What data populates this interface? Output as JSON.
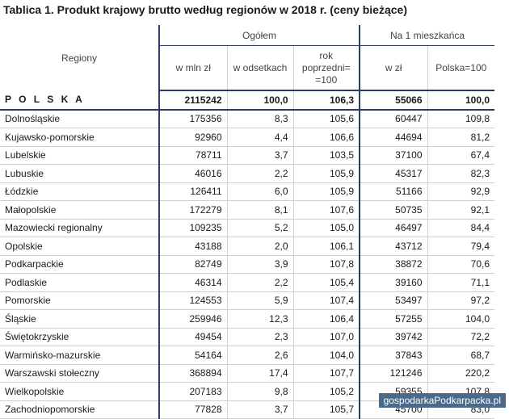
{
  "title": "Tablica 1. Produkt krajowy brutto według regionów w 2018 r. (ceny bieżące)",
  "headers": {
    "regions": "Regiony",
    "group_total": "Ogółem",
    "group_per_capita": "Na 1 mieszkańca",
    "col_mln": "w mln zł",
    "col_pct": "w odsetkach",
    "col_prev_line1": "rok",
    "col_prev_line2": "poprzedni=",
    "col_prev_line3": "=100",
    "col_pln": "w zł",
    "col_pl100": "Polska=100"
  },
  "rows": [
    {
      "name": "P O L S K A",
      "mln": "2115242",
      "pct": "100,0",
      "prev": "106,3",
      "pln": "55066",
      "pl100": "100,0"
    },
    {
      "name": "Dolnośląskie",
      "mln": "175356",
      "pct": "8,3",
      "prev": "105,6",
      "pln": "60447",
      "pl100": "109,8"
    },
    {
      "name": "Kujawsko-pomorskie",
      "mln": "92960",
      "pct": "4,4",
      "prev": "106,6",
      "pln": "44694",
      "pl100": "81,2"
    },
    {
      "name": "Lubelskie",
      "mln": "78711",
      "pct": "3,7",
      "prev": "103,5",
      "pln": "37100",
      "pl100": "67,4"
    },
    {
      "name": "Lubuskie",
      "mln": "46016",
      "pct": "2,2",
      "prev": "105,9",
      "pln": "45317",
      "pl100": "82,3"
    },
    {
      "name": "Łódzkie",
      "mln": "126411",
      "pct": "6,0",
      "prev": "105,9",
      "pln": "51166",
      "pl100": "92,9"
    },
    {
      "name": "Małopolskie",
      "mln": "172279",
      "pct": "8,1",
      "prev": "107,6",
      "pln": "50735",
      "pl100": "92,1"
    },
    {
      "name": "Mazowiecki regionalny",
      "mln": "109235",
      "pct": "5,2",
      "prev": "105,0",
      "pln": "46497",
      "pl100": "84,4"
    },
    {
      "name": "Opolskie",
      "mln": "43188",
      "pct": "2,0",
      "prev": "106,1",
      "pln": "43712",
      "pl100": "79,4"
    },
    {
      "name": "Podkarpackie",
      "mln": "82749",
      "pct": "3,9",
      "prev": "107,8",
      "pln": "38872",
      "pl100": "70,6"
    },
    {
      "name": "Podlaskie",
      "mln": "46314",
      "pct": "2,2",
      "prev": "105,4",
      "pln": "39160",
      "pl100": "71,1"
    },
    {
      "name": "Pomorskie",
      "mln": "124553",
      "pct": "5,9",
      "prev": "107,4",
      "pln": "53497",
      "pl100": "97,2"
    },
    {
      "name": "Śląskie",
      "mln": "259946",
      "pct": "12,3",
      "prev": "106,4",
      "pln": "57255",
      "pl100": "104,0"
    },
    {
      "name": "Świętokrzyskie",
      "mln": "49454",
      "pct": "2,3",
      "prev": "107,0",
      "pln": "39742",
      "pl100": "72,2"
    },
    {
      "name": "Warmińsko-mazurskie",
      "mln": "54164",
      "pct": "2,6",
      "prev": "104,0",
      "pln": "37843",
      "pl100": "68,7"
    },
    {
      "name": "Warszawski stołeczny",
      "mln": "368894",
      "pct": "17,4",
      "prev": "107,7",
      "pln": "121246",
      "pl100": "220,2"
    },
    {
      "name": "Wielkopolskie",
      "mln": "207183",
      "pct": "9,8",
      "prev": "105,2",
      "pln": "59355",
      "pl100": "107,8"
    },
    {
      "name": "Zachodniopomorskie",
      "mln": "77828",
      "pct": "3,7",
      "prev": "105,7",
      "pln": "45700",
      "pl100": "83,0"
    }
  ],
  "watermark": "gospodarkaPodkarpacka.pl"
}
